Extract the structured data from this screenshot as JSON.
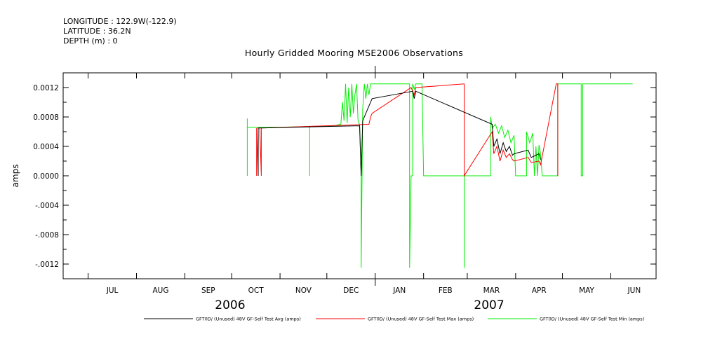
{
  "header": {
    "longitude": "LONGITUDE : 122.9W(-122.9)",
    "latitude": "LATITUDE : 36.2N",
    "depth": "DEPTH (m) : 0"
  },
  "chart_data": {
    "type": "line",
    "title": "Hourly Gridded Mooring MSE2006 Observations",
    "xlabel": "",
    "ylabel": "amps",
    "xlim": [
      "2006-06-15",
      "2007-06-30"
    ],
    "ylim": [
      -0.0014,
      0.0014
    ],
    "y_ticks": [
      0.0012,
      0.0008,
      0.0004,
      0.0,
      -0.0004,
      -0.0008,
      -0.0012
    ],
    "y_tick_labels": [
      "0.0012",
      "0.0008",
      "0.0004",
      "0.0000",
      "-.0004",
      "-.0008",
      "-.0012"
    ],
    "months": [
      {
        "label": "JUL",
        "date": "2006-07-01"
      },
      {
        "label": "AUG",
        "date": "2006-08-01"
      },
      {
        "label": "SEP",
        "date": "2006-09-01"
      },
      {
        "label": "OCT",
        "date": "2006-10-01"
      },
      {
        "label": "NOV",
        "date": "2006-11-01"
      },
      {
        "label": "DEC",
        "date": "2006-12-01"
      },
      {
        "label": "JAN",
        "date": "2007-01-01"
      },
      {
        "label": "FEB",
        "date": "2007-02-01"
      },
      {
        "label": "MAR",
        "date": "2007-03-01"
      },
      {
        "label": "APR",
        "date": "2007-04-01"
      },
      {
        "label": "MAY",
        "date": "2007-05-01"
      },
      {
        "label": "JUN",
        "date": "2007-06-01"
      }
    ],
    "years": [
      {
        "label": "2006",
        "date": "2006-09-30"
      },
      {
        "label": "2007",
        "date": "2007-03-15"
      }
    ],
    "grid": false,
    "legend_position": "bottom",
    "series": [
      {
        "name": "GFT0D/ (Unused) 48V GF-Self Test Min (amps)",
        "color": "#00ee00",
        "points": [
          [
            "2006-10-11",
            0.0
          ],
          [
            "2006-10-11",
            0.00078
          ],
          [
            "2006-10-11",
            0.00066
          ],
          [
            "2006-10-31",
            0.00066
          ],
          [
            "2006-11-20",
            0.00067
          ],
          [
            "2006-11-20",
            0.0
          ],
          [
            "2006-11-20",
            0.00067
          ],
          [
            "2006-12-05",
            0.00068
          ],
          [
            "2006-12-10",
            0.0007
          ],
          [
            "2006-12-11",
            0.001
          ],
          [
            "2006-12-12",
            0.00075
          ],
          [
            "2006-12-13",
            0.00125
          ],
          [
            "2006-12-14",
            0.00072
          ],
          [
            "2006-12-15",
            0.0012
          ],
          [
            "2006-12-16",
            0.0008
          ],
          [
            "2006-12-17",
            0.00125
          ],
          [
            "2006-12-18",
            0.00085
          ],
          [
            "2006-12-19",
            0.0011
          ],
          [
            "2006-12-20",
            0.00125
          ],
          [
            "2006-12-21",
            0.00075
          ],
          [
            "2006-12-22",
            0.0007
          ],
          [
            "2006-12-23",
            0.0
          ],
          [
            "2006-12-23",
            -0.00125
          ],
          [
            "2006-12-24",
            0.0009
          ],
          [
            "2006-12-25",
            0.00125
          ],
          [
            "2006-12-26",
            0.00105
          ],
          [
            "2006-12-27",
            0.00125
          ],
          [
            "2006-12-28",
            0.0011
          ],
          [
            "2006-12-29",
            0.00125
          ],
          [
            "2007-01-23",
            0.00125
          ],
          [
            "2007-01-23",
            -0.00125
          ],
          [
            "2007-01-24",
            0.0
          ],
          [
            "2007-01-25",
            0.0
          ],
          [
            "2007-01-25",
            0.00125
          ],
          [
            "2007-01-26",
            0.00118
          ],
          [
            "2007-01-27",
            0.00125
          ],
          [
            "2007-01-31",
            0.00125
          ],
          [
            "2007-02-01",
            0.0
          ],
          [
            "2007-02-27",
            0.0
          ],
          [
            "2007-02-27",
            -0.00125
          ],
          [
            "2007-02-27",
            0.0
          ],
          [
            "2007-03-16",
            0.0
          ],
          [
            "2007-03-16",
            0.0008
          ],
          [
            "2007-03-17",
            0.00065
          ],
          [
            "2007-03-19",
            0.0007
          ],
          [
            "2007-03-21",
            0.00058
          ],
          [
            "2007-03-23",
            0.00068
          ],
          [
            "2007-03-25",
            0.00052
          ],
          [
            "2007-03-27",
            0.00062
          ],
          [
            "2007-03-29",
            0.00045
          ],
          [
            "2007-03-31",
            0.00055
          ],
          [
            "2007-04-01",
            0.0
          ],
          [
            "2007-04-08",
            0.0
          ],
          [
            "2007-04-08",
            0.0006
          ],
          [
            "2007-04-10",
            0.00045
          ],
          [
            "2007-04-12",
            0.00058
          ],
          [
            "2007-04-13",
            0.0
          ],
          [
            "2007-04-14",
            0.0004
          ],
          [
            "2007-04-15",
            0.0
          ],
          [
            "2007-04-16",
            0.00042
          ],
          [
            "2007-04-17",
            0.0003
          ],
          [
            "2007-04-18",
            0.0
          ],
          [
            "2007-04-28",
            0.0
          ],
          [
            "2007-04-28",
            0.00125
          ],
          [
            "2007-05-13",
            0.00125
          ],
          [
            "2007-05-13",
            0.0
          ],
          [
            "2007-05-14",
            0.0
          ],
          [
            "2007-05-14",
            0.00125
          ],
          [
            "2007-06-15",
            0.00125
          ]
        ]
      },
      {
        "name": "GFT0D/ (Unused) 48V GF-Self Test Max (amps)",
        "color": "#ff0000",
        "points": [
          [
            "2006-10-17",
            0.00065
          ],
          [
            "2006-10-17",
            0.0
          ],
          [
            "2006-10-18",
            0.00065
          ],
          [
            "2006-10-19",
            0.00065
          ],
          [
            "2006-10-20",
            0.0
          ],
          [
            "2006-10-20",
            0.00065
          ],
          [
            "2006-12-28",
            0.0007
          ],
          [
            "2006-12-29",
            0.0008
          ],
          [
            "2006-12-30",
            0.00085
          ],
          [
            "2007-01-24",
            0.0012
          ],
          [
            "2007-01-26",
            0.0011
          ],
          [
            "2007-01-27",
            0.0012
          ],
          [
            "2007-02-27",
            0.00125
          ],
          [
            "2007-02-27",
            0.0
          ],
          [
            "2007-03-17",
            0.0006
          ],
          [
            "2007-03-18",
            0.0003
          ],
          [
            "2007-03-20",
            0.0004
          ],
          [
            "2007-03-22",
            0.0002
          ],
          [
            "2007-03-24",
            0.00035
          ],
          [
            "2007-03-26",
            0.00025
          ],
          [
            "2007-03-28",
            0.0003
          ],
          [
            "2007-03-30",
            0.00022
          ],
          [
            "2007-03-31",
            0.0002
          ],
          [
            "2007-04-09",
            0.00025
          ],
          [
            "2007-04-11",
            0.00018
          ],
          [
            "2007-04-16",
            0.0002
          ],
          [
            "2007-04-17",
            0.00015
          ],
          [
            "2007-04-27",
            0.00125
          ],
          [
            "2007-04-28",
            0.00125
          ],
          [
            "2007-04-28",
            0.0
          ]
        ]
      },
      {
        "name": "GFT0D/ (Unused) 48V GF-Self Test Avg (amps)",
        "color": "#000000",
        "points": [
          [
            "2006-10-18",
            0.0
          ],
          [
            "2006-10-18",
            0.00065
          ],
          [
            "2006-12-22",
            0.00068
          ],
          [
            "2006-12-23",
            0.0
          ],
          [
            "2006-12-24",
            0.00075
          ],
          [
            "2006-12-26",
            0.00085
          ],
          [
            "2006-12-28",
            0.00095
          ],
          [
            "2006-12-30",
            0.00105
          ],
          [
            "2007-01-25",
            0.00115
          ],
          [
            "2007-01-26",
            0.00105
          ],
          [
            "2007-01-27",
            0.00115
          ],
          [
            "2007-03-17",
            0.0007
          ],
          [
            "2007-03-18",
            0.0004
          ],
          [
            "2007-03-20",
            0.0005
          ],
          [
            "2007-03-22",
            0.0003
          ],
          [
            "2007-03-24",
            0.00045
          ],
          [
            "2007-03-26",
            0.00033
          ],
          [
            "2007-03-28",
            0.0004
          ],
          [
            "2007-03-30",
            0.00028
          ],
          [
            "2007-03-31",
            0.0003
          ],
          [
            "2007-04-09",
            0.00035
          ],
          [
            "2007-04-11",
            0.00025
          ],
          [
            "2007-04-16",
            0.0003
          ],
          [
            "2007-04-17",
            0.00022
          ]
        ]
      }
    ],
    "legend": [
      {
        "name": "GFT0D/ (Unused) 48V GF-Self Test Avg (amps)",
        "color": "#000000"
      },
      {
        "name": "GFT0D/ (Unused) 48V GF-Self Test Max (amps)",
        "color": "#ff0000"
      },
      {
        "name": "GFT0D/ (Unused) 48V GF-Self Test Min (amps)",
        "color": "#00ee00"
      }
    ]
  }
}
